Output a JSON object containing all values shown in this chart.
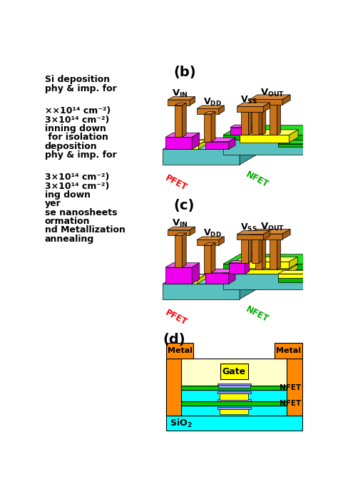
{
  "fig_width": 4.74,
  "fig_height": 6.86,
  "bg_color": "#ffffff",
  "brown_f": "#C8721A",
  "brown_t": "#D4873A",
  "brown_s": "#A05A12",
  "teal_f": "#5ABFBF",
  "teal_t": "#7DD8D8",
  "teal_s": "#3A9999",
  "green_f": "#00BB00",
  "green_t": "#22DD22",
  "green_s": "#008800",
  "yellow_f": "#FFFF00",
  "yellow_t": "#FFFF55",
  "yellow_s": "#CCCC00",
  "magenta_f": "#EE00EE",
  "magenta_t": "#FF55FF",
  "magenta_s": "#BB00BB",
  "orange": "#FF8800",
  "orange_d": "#CC6600",
  "cyan": "#00FFFF",
  "ltgreen": "#CCFFCC",
  "ltyellow": "#FFFFAA",
  "purple": "#8888FF",
  "left_texts": [
    [
      3,
      30,
      "Si deposition",
      9
    ],
    [
      3,
      46,
      "phy & imp. for",
      9
    ],
    [
      3,
      87,
      "××10¹⁴ cm⁻²)",
      9
    ],
    [
      3,
      103,
      "3×10¹⁴ cm⁻²)",
      9
    ],
    [
      3,
      119,
      "inning down",
      9
    ],
    [
      3,
      135,
      " for isolation",
      9
    ],
    [
      3,
      151,
      "deposition",
      9
    ],
    [
      3,
      167,
      "phy & imp. for",
      9
    ],
    [
      3,
      208,
      "3×10¹⁴ cm⁻²)",
      9
    ],
    [
      3,
      224,
      "3×10¹⁴ cm⁻²)",
      9
    ],
    [
      3,
      240,
      "ing down",
      9
    ],
    [
      3,
      256,
      "yer",
      9
    ],
    [
      3,
      272,
      "se nanosheets",
      9
    ],
    [
      3,
      288,
      "ormation",
      9
    ],
    [
      3,
      304,
      "nd Metallization",
      9
    ],
    [
      3,
      320,
      "annealing",
      9
    ]
  ]
}
